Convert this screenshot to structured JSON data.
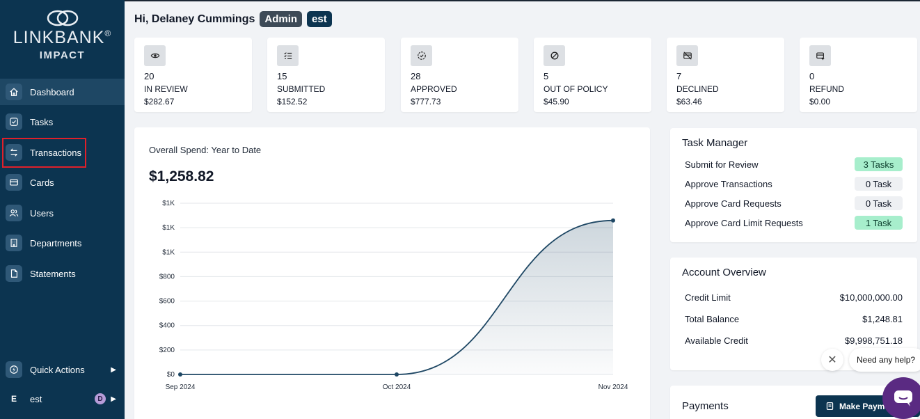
{
  "brand": {
    "name": "LINKBANK",
    "registered": "®",
    "sub": "IMPACT"
  },
  "sidebar": {
    "items": [
      {
        "label": "Dashboard",
        "icon": "home-icon",
        "active": true
      },
      {
        "label": "Tasks",
        "icon": "check-circle-icon"
      },
      {
        "label": "Transactions",
        "icon": "arrows-swap-icon"
      },
      {
        "label": "Cards",
        "icon": "card-icon"
      },
      {
        "label": "Users",
        "icon": "users-icon"
      },
      {
        "label": "Departments",
        "icon": "building-icon"
      },
      {
        "label": "Statements",
        "icon": "document-icon"
      }
    ],
    "quick_actions": "Quick Actions",
    "user": {
      "initial": "E",
      "name": "est",
      "badge": "D"
    }
  },
  "header": {
    "greeting": "Hi, Delaney Cummings",
    "role": "Admin",
    "org": "est"
  },
  "stats": [
    {
      "icon": "eye-icon",
      "count": "20",
      "label": "IN REVIEW",
      "amount": "$282.67"
    },
    {
      "icon": "list-check-icon",
      "count": "15",
      "label": "SUBMITTED",
      "amount": "$152.52"
    },
    {
      "icon": "badge-check-icon",
      "count": "28",
      "label": "APPROVED",
      "amount": "$777.73"
    },
    {
      "icon": "ban-icon",
      "count": "5",
      "label": "OUT OF POLICY",
      "amount": "$45.90"
    },
    {
      "icon": "card-off-icon",
      "count": "7",
      "label": "DECLINED",
      "amount": "$63.46"
    },
    {
      "icon": "card-plus-icon",
      "count": "0",
      "label": "REFUND",
      "amount": "$0.00"
    }
  ],
  "chart": {
    "title": "Overall Spend: Year to Date",
    "total": "$1,258.82"
  },
  "chart_data": {
    "type": "area",
    "x": [
      "Sep 2024",
      "Oct 2024",
      "Nov 2024"
    ],
    "values": [
      0,
      0,
      1258.82
    ],
    "y_ticks": [
      "$0",
      "$200",
      "$400",
      "$600",
      "$800",
      "$1K",
      "$1K",
      "$1K"
    ],
    "ylim": [
      0,
      1400
    ],
    "grid": true,
    "color": "#1e4764"
  },
  "task_manager": {
    "title": "Task Manager",
    "rows": [
      {
        "label": "Submit for Review",
        "badge": "3 Tasks",
        "style": "green"
      },
      {
        "label": "Approve Transactions",
        "badge": "0 Task",
        "style": "gray"
      },
      {
        "label": "Approve Card Requests",
        "badge": "0 Task",
        "style": "gray"
      },
      {
        "label": "Approve Card Limit Requests",
        "badge": "1 Task",
        "style": "green"
      }
    ]
  },
  "account_overview": {
    "title": "Account Overview",
    "rows": [
      {
        "label": "Credit Limit",
        "value": "$10,000,000.00"
      },
      {
        "label": "Total Balance",
        "value": "$1,248.81"
      },
      {
        "label": "Available Credit",
        "value": "$9,998,751.18"
      }
    ]
  },
  "payments": {
    "title": "Payments",
    "button": "Make Payment"
  },
  "help": {
    "text": "Need any help?"
  },
  "colors": {
    "sidebar": "#0c3450",
    "accent_green": "#a7eecc",
    "chat": "#5a2a82"
  }
}
